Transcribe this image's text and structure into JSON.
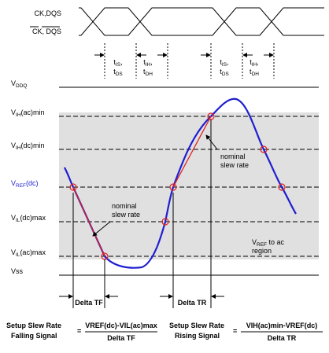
{
  "clock": {
    "label_true": "CK,DQS",
    "label_comp": "CK, DQS"
  },
  "timing": [
    {
      "setup": {
        "base": "t",
        "sub": "IS",
        "suffix": ","
      },
      "setup2": {
        "base": "t",
        "sub": "DS"
      },
      "hold": {
        "base": "t",
        "sub": "IH",
        "suffix": ","
      },
      "hold2": {
        "base": "t",
        "sub": "DH"
      }
    },
    {
      "setup": {
        "base": "t",
        "sub": "IS",
        "suffix": ","
      },
      "setup2": {
        "base": "t",
        "sub": "DS"
      },
      "hold": {
        "base": "t",
        "sub": "IH",
        "suffix": ","
      },
      "hold2": {
        "base": "t",
        "sub": "DH"
      }
    }
  ],
  "levels": [
    {
      "base": "V",
      "sub": "DDQ"
    },
    {
      "base": "V",
      "sub": "IH",
      "suffix": "(ac)min"
    },
    {
      "base": "V",
      "sub": "IH",
      "suffix": "(dc)min"
    },
    {
      "base": "V",
      "sub": "REF",
      "suffix": "(dc)"
    },
    {
      "base": "V",
      "sub": "IL",
      "suffix": "(dc)max"
    },
    {
      "base": "V",
      "sub": "IL",
      "suffix": "(ac)max"
    },
    {
      "base": "Vss"
    }
  ],
  "annotations": {
    "nominal_fall": [
      "nominal",
      "slew rate"
    ],
    "nominal_rise": [
      "nominal",
      "slew rate"
    ],
    "region": {
      "base": "V",
      "sub": "REF",
      "suffix": " to ac",
      "line2": "region"
    },
    "delta_tf": "Delta TF",
    "delta_tr": "Delta TR"
  },
  "formulas": [
    {
      "label1": "Setup Slew Rate",
      "label2": "Falling Signal",
      "eq": "=",
      "numerator": "VREF(dc)-VIL(ac)max",
      "denominator": "Delta TF"
    },
    {
      "label1": "Setup Slew Rate",
      "label2": "Rising Signal",
      "eq": "=",
      "numerator": "VIH(ac)min-VREF(dc)",
      "denominator": "Delta TR"
    }
  ]
}
